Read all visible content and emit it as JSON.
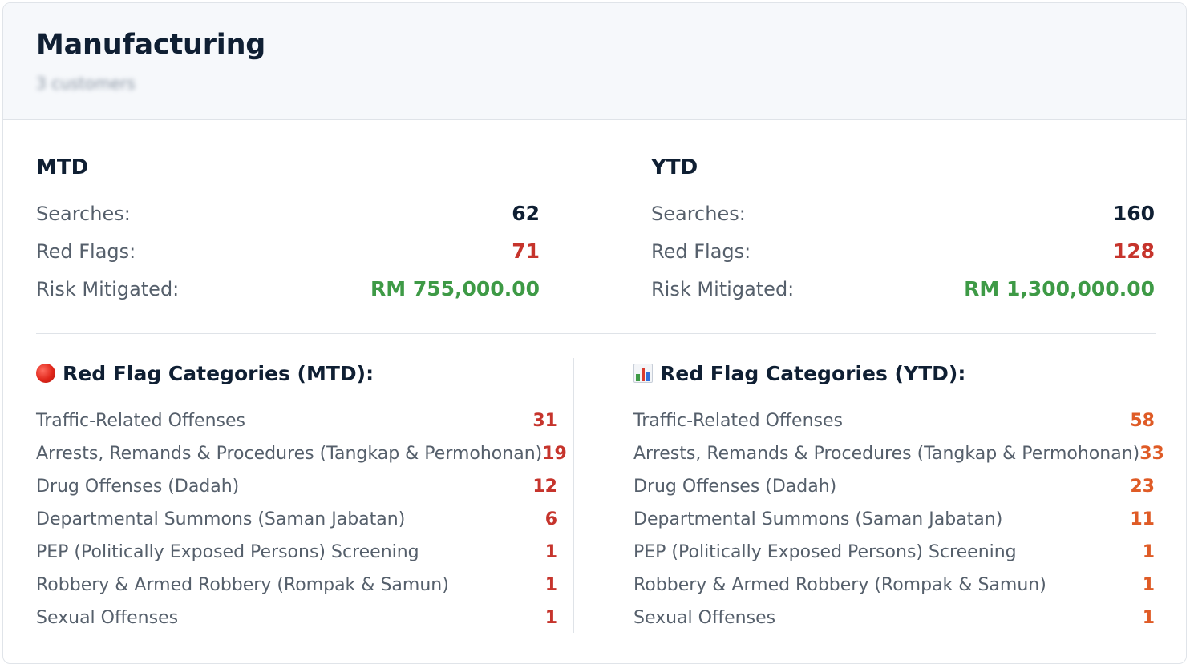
{
  "header": {
    "title": "Manufacturing",
    "subtitle": "3 customers"
  },
  "mtd": {
    "heading": "MTD",
    "rows": [
      {
        "label": "Searches:",
        "value": "62"
      },
      {
        "label": "Red Flags:",
        "value": "71"
      },
      {
        "label": "Risk Mitigated:",
        "value": "RM 755,000.00"
      }
    ]
  },
  "ytd": {
    "heading": "YTD",
    "rows": [
      {
        "label": "Searches:",
        "value": "160"
      },
      {
        "label": "Red Flags:",
        "value": "128"
      },
      {
        "label": "Risk Mitigated:",
        "value": "RM 1,300,000.00"
      }
    ]
  },
  "categories_mtd": {
    "icon": "red-circle-icon",
    "heading": "Red Flag Categories (MTD):",
    "items": [
      {
        "label": "Traffic-Related Offenses",
        "value": "31"
      },
      {
        "label": "Arrests, Remands & Procedures (Tangkap & Permohonan)",
        "value": "19"
      },
      {
        "label": "Drug Offenses (Dadah)",
        "value": "12"
      },
      {
        "label": "Departmental Summons (Saman Jabatan)",
        "value": "6"
      },
      {
        "label": "PEP (Politically Exposed Persons) Screening",
        "value": "1"
      },
      {
        "label": "Robbery & Armed Robbery (Rompak & Samun)",
        "value": "1"
      },
      {
        "label": "Sexual Offenses",
        "value": "1"
      }
    ]
  },
  "categories_ytd": {
    "icon": "bar-chart-icon",
    "heading": "Red Flag Categories (YTD):",
    "items": [
      {
        "label": "Traffic-Related Offenses",
        "value": "58"
      },
      {
        "label": "Arrests, Remands & Procedures (Tangkap & Permohonan)",
        "value": "33"
      },
      {
        "label": "Drug Offenses (Dadah)",
        "value": "23"
      },
      {
        "label": "Departmental Summons (Saman Jabatan)",
        "value": "11"
      },
      {
        "label": "PEP (Politically Exposed Persons) Screening",
        "value": "1"
      },
      {
        "label": "Robbery & Armed Robbery (Rompak & Samun)",
        "value": "1"
      },
      {
        "label": "Sexual Offenses",
        "value": "1"
      }
    ]
  },
  "colors": {
    "title": "#0f1f33",
    "red_value": "#c6342c",
    "green_value": "#3e9a46",
    "orange_value": "#df5b26",
    "label": "#555f6b"
  }
}
